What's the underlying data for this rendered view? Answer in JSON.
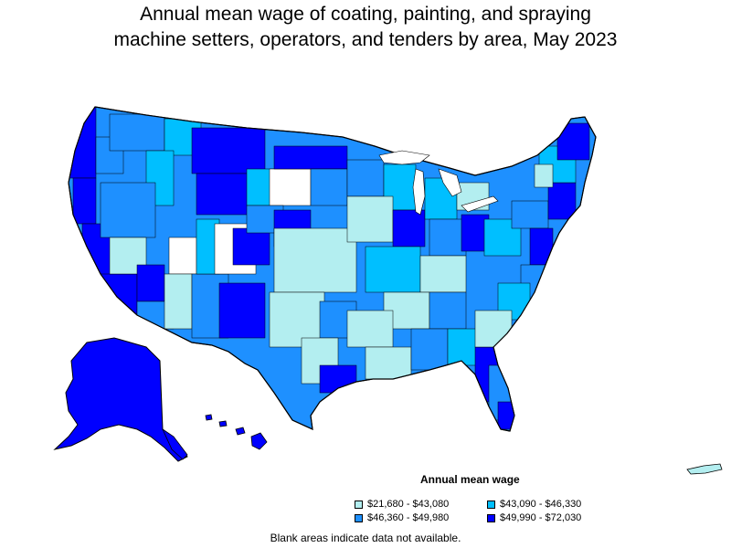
{
  "title_line1": "Annual mean wage of coating, painting, and spraying",
  "title_line2": "machine setters, operators, and tenders by area, May 2023",
  "legend": {
    "title": "Annual mean wage",
    "items": [
      {
        "label": "$21,680 - $43,080",
        "color": "#b3eef0"
      },
      {
        "label": "$43,090 - $46,330",
        "color": "#00bfff"
      },
      {
        "label": "$46,360 - $49,980",
        "color": "#1e90ff"
      },
      {
        "label": "$49,990 - $72,030",
        "color": "#0000ff"
      }
    ]
  },
  "note": "Blank areas indicate data not available.",
  "colors": {
    "tier1": "#b3eef0",
    "tier2": "#00bfff",
    "tier3": "#1e90ff",
    "tier4": "#0000ff",
    "blank": "#ffffff",
    "border": "#000000"
  }
}
